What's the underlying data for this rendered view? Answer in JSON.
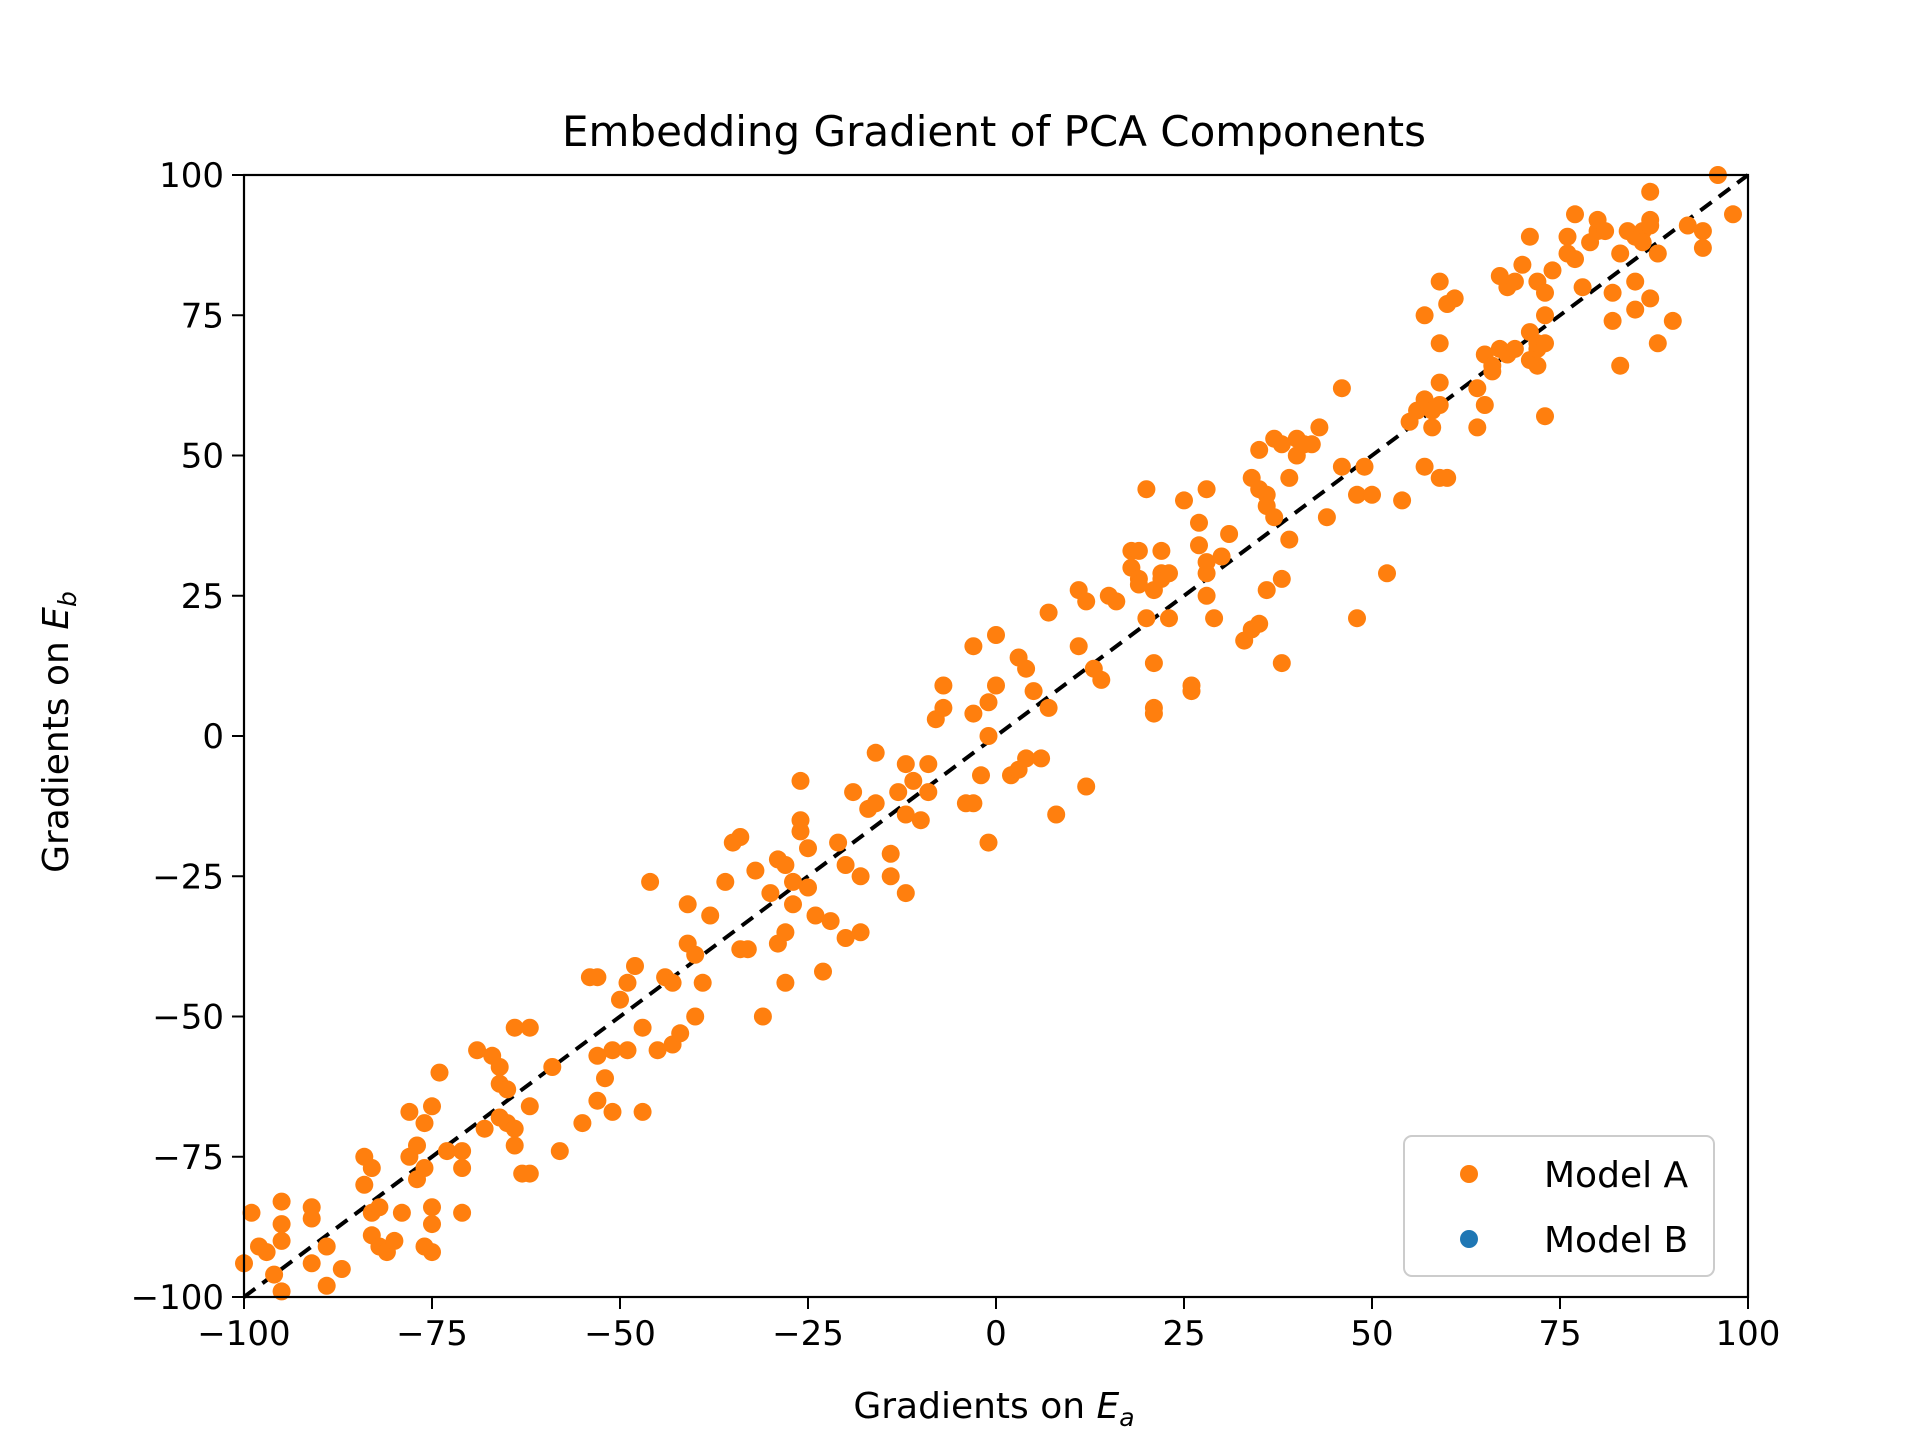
{
  "chart_data": {
    "type": "scatter",
    "title": "Embedding Gradient of PCA Components",
    "xlabel_prefix": "Gradients on ",
    "xlabel_var": "E",
    "xlabel_sub": "a",
    "ylabel_prefix": "Gradients on ",
    "ylabel_var": "E",
    "ylabel_sub": "b",
    "xlim": [
      -100,
      100
    ],
    "ylim": [
      -100,
      100
    ],
    "xticks": [
      -100,
      -75,
      -50,
      -25,
      0,
      25,
      50,
      75,
      100
    ],
    "yticks": [
      -100,
      -75,
      -50,
      -25,
      0,
      25,
      50,
      75,
      100
    ],
    "xtick_labels": [
      "−100",
      "−75",
      "−50",
      "−25",
      "0",
      "25",
      "50",
      "75",
      "100"
    ],
    "ytick_labels": [
      "−100",
      "−75",
      "−50",
      "−25",
      "0",
      "25",
      "50",
      "75",
      "100"
    ],
    "grid": false,
    "legend_position": "lower-right",
    "reference_line": {
      "style": "dashed",
      "color": "#000000",
      "from": [
        -100,
        -100
      ],
      "to": [
        100,
        100
      ]
    },
    "series": [
      {
        "name": "Model A",
        "color": "#ff7f0e",
        "points": [
          [
            -99,
            -85
          ],
          [
            -100,
            -94
          ],
          [
            -98,
            -91
          ],
          [
            -97,
            -92
          ],
          [
            -96,
            -96
          ],
          [
            -95,
            -99
          ],
          [
            -95,
            -90
          ],
          [
            -95,
            -87
          ],
          [
            -95,
            -83
          ],
          [
            -91,
            -84
          ],
          [
            -91,
            -86
          ],
          [
            -91,
            -94
          ],
          [
            -89,
            -91
          ],
          [
            -89,
            -98
          ],
          [
            -87,
            -95
          ],
          [
            -84,
            -80
          ],
          [
            -84,
            -75
          ],
          [
            -83,
            -77
          ],
          [
            -83,
            -85
          ],
          [
            -83,
            -89
          ],
          [
            -82,
            -84
          ],
          [
            -82,
            -91
          ],
          [
            -81,
            -92
          ],
          [
            -80,
            -90
          ],
          [
            -79,
            -85
          ],
          [
            -78,
            -67
          ],
          [
            -78,
            -75
          ],
          [
            -77,
            -79
          ],
          [
            -77,
            -73
          ],
          [
            -76,
            -69
          ],
          [
            -76,
            -77
          ],
          [
            -75,
            -66
          ],
          [
            -75,
            -84
          ],
          [
            -75,
            -87
          ],
          [
            -75,
            -92
          ],
          [
            -76,
            -91
          ],
          [
            -74,
            -60
          ],
          [
            -73,
            -74
          ],
          [
            -71,
            -74
          ],
          [
            -71,
            -77
          ],
          [
            -71,
            -85
          ],
          [
            -69,
            -56
          ],
          [
            -68,
            -70
          ],
          [
            -67,
            -57
          ],
          [
            -66,
            -59
          ],
          [
            -66,
            -62
          ],
          [
            -66,
            -68
          ],
          [
            -65,
            -63
          ],
          [
            -65,
            -69
          ],
          [
            -64,
            -70
          ],
          [
            -64,
            -73
          ],
          [
            -64,
            -52
          ],
          [
            -62,
            -52
          ],
          [
            -62,
            -66
          ],
          [
            -62,
            -78
          ],
          [
            -63,
            -78
          ],
          [
            -59,
            -59
          ],
          [
            -58,
            -74
          ],
          [
            -55,
            -69
          ],
          [
            -54,
            -43
          ],
          [
            -53,
            -43
          ],
          [
            -53,
            -57
          ],
          [
            -53,
            -65
          ],
          [
            -52,
            -61
          ],
          [
            -51,
            -56
          ],
          [
            -51,
            -67
          ],
          [
            -50,
            -47
          ],
          [
            -49,
            -44
          ],
          [
            -49,
            -56
          ],
          [
            -48,
            -41
          ],
          [
            -47,
            -52
          ],
          [
            -47,
            -67
          ],
          [
            -46,
            -26
          ],
          [
            -45,
            -56
          ],
          [
            -44,
            -43
          ],
          [
            -43,
            -44
          ],
          [
            -43,
            -55
          ],
          [
            -42,
            -53
          ],
          [
            -41,
            -37
          ],
          [
            -41,
            -30
          ],
          [
            -40,
            -50
          ],
          [
            -40,
            -39
          ],
          [
            -39,
            -44
          ],
          [
            -38,
            -32
          ],
          [
            -36,
            -26
          ],
          [
            -35,
            -19
          ],
          [
            -34,
            -18
          ],
          [
            -34,
            -38
          ],
          [
            -33,
            -38
          ],
          [
            -32,
            -24
          ],
          [
            -31,
            -50
          ],
          [
            -30,
            -28
          ],
          [
            -29,
            -22
          ],
          [
            -29,
            -37
          ],
          [
            -28,
            -23
          ],
          [
            -28,
            -44
          ],
          [
            -28,
            -35
          ],
          [
            -27,
            -26
          ],
          [
            -27,
            -30
          ],
          [
            -26,
            -17
          ],
          [
            -26,
            -15
          ],
          [
            -26,
            -8
          ],
          [
            -25,
            -27
          ],
          [
            -25,
            -20
          ],
          [
            -24,
            -32
          ],
          [
            -23,
            -42
          ],
          [
            -22,
            -33
          ],
          [
            -21,
            -19
          ],
          [
            -20,
            -23
          ],
          [
            -20,
            -36
          ],
          [
            -19,
            -10
          ],
          [
            -18,
            -35
          ],
          [
            -18,
            -25
          ],
          [
            -17,
            -13
          ],
          [
            -16,
            -3
          ],
          [
            -16,
            -12
          ],
          [
            -14,
            -21
          ],
          [
            -14,
            -25
          ],
          [
            -13,
            -10
          ],
          [
            -12,
            -28
          ],
          [
            -12,
            -14
          ],
          [
            -12,
            -5
          ],
          [
            -11,
            -8
          ],
          [
            -10,
            -15
          ],
          [
            -9,
            -5
          ],
          [
            -9,
            -10
          ],
          [
            -8,
            3
          ],
          [
            -7,
            5
          ],
          [
            -7,
            9
          ],
          [
            -4,
            -12
          ],
          [
            -3,
            16
          ],
          [
            -3,
            -12
          ],
          [
            -3,
            4
          ],
          [
            -2,
            -7
          ],
          [
            -1,
            6
          ],
          [
            -1,
            -19
          ],
          [
            -1,
            0
          ],
          [
            0,
            18
          ],
          [
            0,
            9
          ],
          [
            2,
            -7
          ],
          [
            3,
            -6
          ],
          [
            3,
            14
          ],
          [
            4,
            12
          ],
          [
            4,
            -4
          ],
          [
            5,
            8
          ],
          [
            6,
            -4
          ],
          [
            7,
            5
          ],
          [
            7,
            22
          ],
          [
            8,
            -14
          ],
          [
            11,
            26
          ],
          [
            11,
            16
          ],
          [
            12,
            24
          ],
          [
            12,
            -9
          ],
          [
            13,
            12
          ],
          [
            14,
            10
          ],
          [
            15,
            25
          ],
          [
            16,
            24
          ],
          [
            18,
            33
          ],
          [
            18,
            30
          ],
          [
            19,
            28
          ],
          [
            19,
            27
          ],
          [
            19,
            33
          ],
          [
            20,
            21
          ],
          [
            20,
            44
          ],
          [
            21,
            13
          ],
          [
            21,
            5
          ],
          [
            21,
            4
          ],
          [
            21,
            26
          ],
          [
            22,
            29
          ],
          [
            22,
            28
          ],
          [
            22,
            33
          ],
          [
            23,
            21
          ],
          [
            23,
            29
          ],
          [
            25,
            42
          ],
          [
            26,
            9
          ],
          [
            26,
            8
          ],
          [
            27,
            38
          ],
          [
            27,
            34
          ],
          [
            28,
            44
          ],
          [
            28,
            25
          ],
          [
            28,
            29
          ],
          [
            28,
            31
          ],
          [
            29,
            21
          ],
          [
            30,
            32
          ],
          [
            31,
            36
          ],
          [
            33,
            17
          ],
          [
            34,
            19
          ],
          [
            34,
            46
          ],
          [
            35,
            51
          ],
          [
            35,
            44
          ],
          [
            35,
            20
          ],
          [
            36,
            26
          ],
          [
            36,
            43
          ],
          [
            36,
            41
          ],
          [
            37,
            53
          ],
          [
            37,
            39
          ],
          [
            38,
            28
          ],
          [
            38,
            52
          ],
          [
            38,
            13
          ],
          [
            39,
            35
          ],
          [
            39,
            46
          ],
          [
            40,
            50
          ],
          [
            40,
            53
          ],
          [
            41,
            52
          ],
          [
            42,
            52
          ],
          [
            43,
            55
          ],
          [
            44,
            39
          ],
          [
            46,
            48
          ],
          [
            46,
            62
          ],
          [
            48,
            21
          ],
          [
            48,
            43
          ],
          [
            49,
            48
          ],
          [
            50,
            43
          ],
          [
            52,
            29
          ],
          [
            54,
            42
          ],
          [
            55,
            56
          ],
          [
            56,
            58
          ],
          [
            57,
            48
          ],
          [
            57,
            75
          ],
          [
            57,
            60
          ],
          [
            58,
            55
          ],
          [
            58,
            58
          ],
          [
            59,
            59
          ],
          [
            59,
            70
          ],
          [
            59,
            81
          ],
          [
            59,
            63
          ],
          [
            59,
            46
          ],
          [
            60,
            46
          ],
          [
            60,
            77
          ],
          [
            61,
            78
          ],
          [
            64,
            55
          ],
          [
            64,
            62
          ],
          [
            65,
            68
          ],
          [
            65,
            59
          ],
          [
            66,
            65
          ],
          [
            66,
            66
          ],
          [
            67,
            82
          ],
          [
            67,
            69
          ],
          [
            68,
            68
          ],
          [
            68,
            80
          ],
          [
            69,
            81
          ],
          [
            69,
            69
          ],
          [
            70,
            84
          ],
          [
            71,
            89
          ],
          [
            71,
            72
          ],
          [
            71,
            67
          ],
          [
            72,
            69
          ],
          [
            72,
            81
          ],
          [
            72,
            66
          ],
          [
            72,
            70
          ],
          [
            73,
            70
          ],
          [
            73,
            57
          ],
          [
            73,
            75
          ],
          [
            73,
            79
          ],
          [
            74,
            83
          ],
          [
            76,
            89
          ],
          [
            76,
            86
          ],
          [
            77,
            93
          ],
          [
            77,
            85
          ],
          [
            78,
            80
          ],
          [
            79,
            88
          ],
          [
            80,
            90
          ],
          [
            80,
            92
          ],
          [
            81,
            90
          ],
          [
            82,
            74
          ],
          [
            82,
            79
          ],
          [
            83,
            66
          ],
          [
            83,
            86
          ],
          [
            84,
            90
          ],
          [
            85,
            89
          ],
          [
            85,
            81
          ],
          [
            85,
            76
          ],
          [
            86,
            90
          ],
          [
            86,
            88
          ],
          [
            87,
            97
          ],
          [
            87,
            92
          ],
          [
            87,
            91
          ],
          [
            87,
            78
          ],
          [
            88,
            70
          ],
          [
            88,
            86
          ],
          [
            90,
            74
          ],
          [
            92,
            91
          ],
          [
            94,
            90
          ],
          [
            94,
            87
          ],
          [
            96,
            100
          ],
          [
            98,
            93
          ]
        ]
      },
      {
        "name": "Model B",
        "color": "#1f77b4",
        "points": []
      }
    ]
  }
}
